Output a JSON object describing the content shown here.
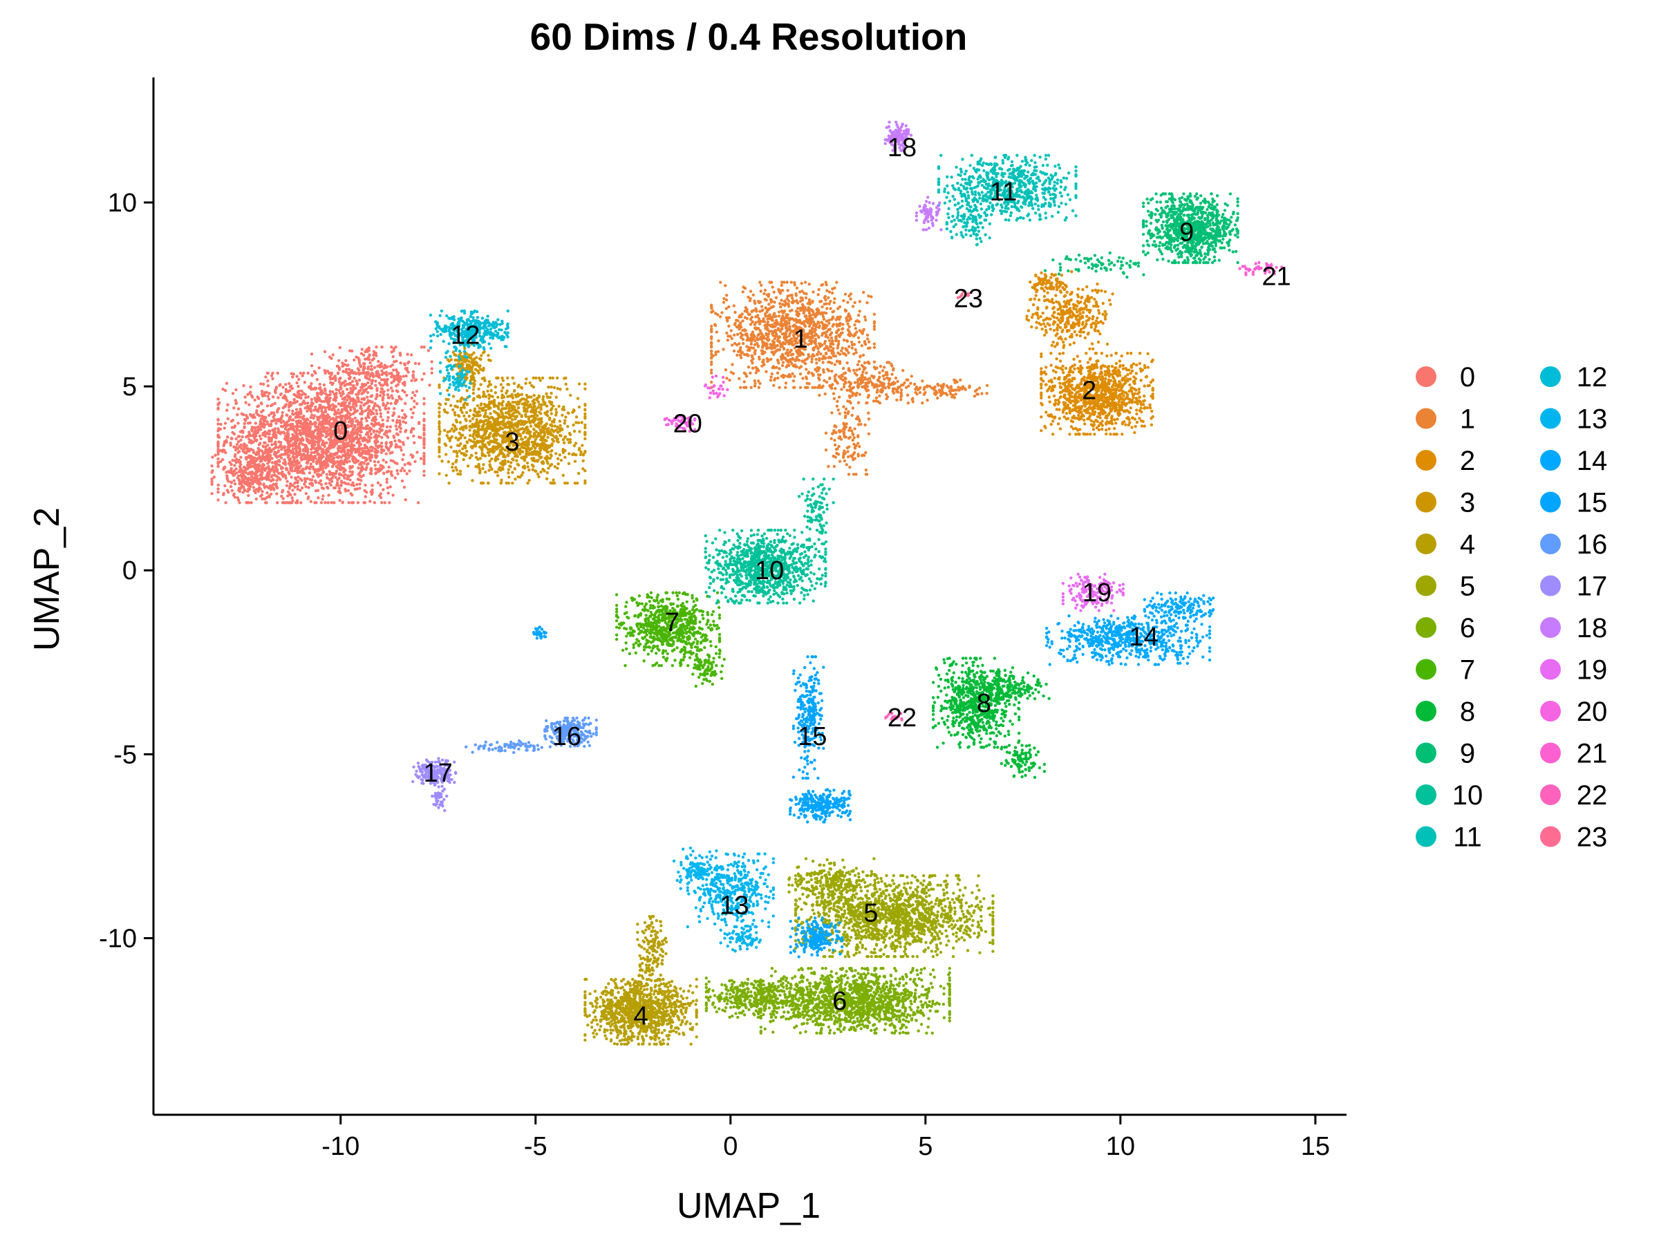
{
  "chart_data": {
    "type": "scatter",
    "title": "60 Dims / 0.4 Resolution",
    "xlabel": "UMAP_1",
    "ylabel": "UMAP_2",
    "xlim": [
      -14.8,
      15.8
    ],
    "ylim": [
      -14.8,
      13.4
    ],
    "x_ticks": [
      -10,
      -5,
      0,
      5,
      10,
      15
    ],
    "x_tick_labels": [
      "-10",
      "-5",
      "0",
      "5",
      "10",
      "15"
    ],
    "y_ticks": [
      -10,
      -5,
      0,
      5,
      10
    ],
    "y_tick_labels": [
      "-10",
      "-5",
      "0",
      "5",
      "10"
    ],
    "grid": false,
    "legend_position": "right",
    "clusters": [
      {
        "id": "0",
        "color": "#F8766D",
        "label_pos": [
          -10.0,
          3.8
        ],
        "blobs": [
          [
            -10.5,
            3.6,
            2.4,
            1.6,
            2400
          ],
          [
            -12.2,
            2.6,
            1.0,
            0.6,
            300
          ],
          [
            -9.2,
            5.3,
            1.4,
            0.7,
            300
          ]
        ]
      },
      {
        "id": "1",
        "color": "#EB8335",
        "label_pos": [
          1.8,
          6.3
        ],
        "blobs": [
          [
            1.6,
            6.4,
            1.9,
            1.3,
            1200
          ],
          [
            3.6,
            5.1,
            1.2,
            0.5,
            200
          ],
          [
            3.0,
            3.6,
            0.5,
            0.9,
            120
          ],
          [
            5.3,
            4.9,
            1.2,
            0.25,
            100
          ]
        ]
      },
      {
        "id": "2",
        "color": "#DE8C00",
        "label_pos": [
          9.2,
          4.9
        ],
        "blobs": [
          [
            9.4,
            4.8,
            1.3,
            1.0,
            1000
          ],
          [
            8.7,
            6.9,
            1.0,
            0.8,
            300
          ],
          [
            8.2,
            7.8,
            0.5,
            0.3,
            80
          ]
        ]
      },
      {
        "id": "3",
        "color": "#CD9600",
        "label_pos": [
          -5.6,
          3.5
        ],
        "blobs": [
          [
            -5.6,
            3.8,
            1.7,
            1.3,
            1300
          ],
          [
            -6.7,
            5.6,
            0.5,
            0.5,
            150
          ]
        ]
      },
      {
        "id": "4",
        "color": "#B79F00",
        "label_pos": [
          -2.3,
          -12.1
        ],
        "blobs": [
          [
            -2.3,
            -12.0,
            1.3,
            0.8,
            1000
          ],
          [
            -2.0,
            -10.4,
            0.35,
            0.9,
            150
          ]
        ]
      },
      {
        "id": "5",
        "color": "#9DA700",
        "label_pos": [
          3.6,
          -9.3
        ],
        "blobs": [
          [
            4.2,
            -9.4,
            2.3,
            1.0,
            1400
          ],
          [
            2.6,
            -8.5,
            1.0,
            0.6,
            250
          ]
        ]
      },
      {
        "id": "6",
        "color": "#7CAE00",
        "label_pos": [
          2.8,
          -11.7
        ],
        "blobs": [
          [
            3.2,
            -11.7,
            2.2,
            0.8,
            1300
          ],
          [
            0.7,
            -11.6,
            1.2,
            0.5,
            400
          ]
        ]
      },
      {
        "id": "7",
        "color": "#49B500",
        "label_pos": [
          -1.5,
          -1.4
        ],
        "blobs": [
          [
            -1.6,
            -1.6,
            1.2,
            0.9,
            700
          ],
          [
            -0.6,
            -2.6,
            0.4,
            0.5,
            80
          ]
        ]
      },
      {
        "id": "8",
        "color": "#00BA38",
        "label_pos": [
          6.5,
          -3.6
        ],
        "blobs": [
          [
            6.3,
            -3.6,
            1.0,
            1.1,
            700
          ],
          [
            7.5,
            -5.2,
            0.5,
            0.4,
            90
          ],
          [
            7.4,
            -3.2,
            0.7,
            0.4,
            100
          ]
        ]
      },
      {
        "id": "9",
        "color": "#00BF74",
        "label_pos": [
          11.7,
          9.2
        ],
        "blobs": [
          [
            11.8,
            9.3,
            1.1,
            0.85,
            900
          ],
          [
            9.5,
            8.3,
            1.3,
            0.3,
            70
          ]
        ]
      },
      {
        "id": "10",
        "color": "#00C19A",
        "label_pos": [
          1.0,
          0.0
        ],
        "blobs": [
          [
            0.9,
            0.1,
            1.4,
            0.9,
            900
          ],
          [
            2.2,
            1.6,
            0.4,
            0.8,
            90
          ]
        ]
      },
      {
        "id": "11",
        "color": "#00C0B8",
        "label_pos": [
          7.0,
          10.3
        ],
        "blobs": [
          [
            7.1,
            10.4,
            1.6,
            0.8,
            700
          ],
          [
            6.1,
            9.4,
            0.5,
            0.5,
            90
          ]
        ]
      },
      {
        "id": "12",
        "color": "#00BCD6",
        "label_pos": [
          -6.8,
          6.4
        ],
        "blobs": [
          [
            -6.7,
            6.5,
            0.9,
            0.5,
            350
          ],
          [
            -7.0,
            5.3,
            0.4,
            0.6,
            80
          ]
        ]
      },
      {
        "id": "13",
        "color": "#00B5EE",
        "label_pos": [
          0.1,
          -9.1
        ],
        "blobs": [
          [
            0.0,
            -8.7,
            1.0,
            0.9,
            400
          ],
          [
            -0.9,
            -8.1,
            0.5,
            0.5,
            100
          ],
          [
            0.3,
            -10.0,
            0.5,
            0.4,
            80
          ]
        ]
      },
      {
        "id": "14",
        "color": "#00A9FF",
        "label_pos": [
          10.6,
          -1.8
        ],
        "blobs": [
          [
            10.2,
            -1.9,
            1.9,
            0.6,
            600
          ],
          [
            11.5,
            -1.0,
            0.8,
            0.35,
            150
          ]
        ]
      },
      {
        "id": "15",
        "color": "#00A5FF",
        "label_pos": [
          2.1,
          -4.5
        ],
        "blobs": [
          [
            2.0,
            -4.0,
            0.35,
            1.5,
            250
          ],
          [
            2.3,
            -6.4,
            0.7,
            0.4,
            250
          ],
          [
            2.2,
            -10.0,
            0.6,
            0.5,
            200
          ],
          [
            -4.9,
            -1.7,
            0.2,
            0.15,
            30
          ]
        ]
      },
      {
        "id": "16",
        "color": "#619CFF",
        "label_pos": [
          -4.2,
          -4.5
        ],
        "blobs": [
          [
            -4.1,
            -4.4,
            0.6,
            0.35,
            250
          ],
          [
            -5.7,
            -4.8,
            1.0,
            0.15,
            70
          ]
        ]
      },
      {
        "id": "17",
        "color": "#9F8CFF",
        "label_pos": [
          -7.5,
          -5.5
        ],
        "blobs": [
          [
            -7.6,
            -5.5,
            0.5,
            0.35,
            200
          ],
          [
            -7.5,
            -6.2,
            0.2,
            0.3,
            40
          ]
        ]
      },
      {
        "id": "18",
        "color": "#C77CFF",
        "label_pos": [
          4.4,
          11.5
        ],
        "blobs": [
          [
            4.3,
            11.8,
            0.3,
            0.35,
            120
          ],
          [
            5.1,
            9.7,
            0.3,
            0.4,
            60
          ]
        ]
      },
      {
        "id": "19",
        "color": "#E76BF3",
        "label_pos": [
          9.4,
          -0.6
        ],
        "blobs": [
          [
            9.3,
            -0.6,
            0.7,
            0.45,
            150
          ]
        ]
      },
      {
        "id": "20",
        "color": "#F564E3",
        "label_pos": [
          -1.1,
          4.0
        ],
        "blobs": [
          [
            -1.3,
            4.0,
            0.35,
            0.2,
            50
          ],
          [
            -0.4,
            5.0,
            0.3,
            0.3,
            25
          ]
        ]
      },
      {
        "id": "21",
        "color": "#FD61D1",
        "label_pos": [
          14.0,
          8.0
        ],
        "blobs": [
          [
            13.6,
            8.2,
            0.55,
            0.15,
            40
          ]
        ]
      },
      {
        "id": "22",
        "color": "#FF62BC",
        "label_pos": [
          4.4,
          -4.0
        ],
        "blobs": [
          [
            4.2,
            -4.0,
            0.2,
            0.1,
            20
          ]
        ]
      },
      {
        "id": "23",
        "color": "#FF6C91",
        "label_pos": [
          6.1,
          7.4
        ],
        "blobs": [
          [
            6.0,
            7.5,
            0.15,
            0.1,
            10
          ]
        ]
      }
    ]
  }
}
